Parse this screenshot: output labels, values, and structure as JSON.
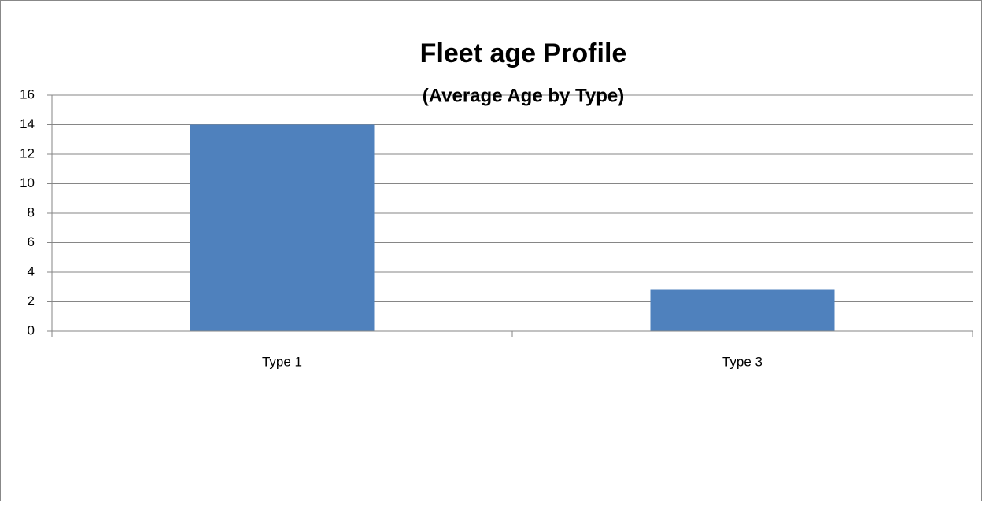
{
  "chart_data": {
    "type": "bar",
    "title": "Fleet age Profile",
    "subtitle": "(Average Age by Type)",
    "categories": [
      "Type 1",
      "Type 3"
    ],
    "values": [
      14,
      2.8
    ],
    "color": "#4f81bd",
    "ylim": [
      0,
      16
    ],
    "yticks": [
      0,
      2,
      4,
      6,
      8,
      10,
      12,
      14,
      16
    ],
    "grid": true
  }
}
